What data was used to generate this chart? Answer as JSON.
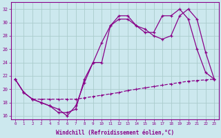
{
  "background_color": "#cce8ee",
  "grid_color": "#aacccc",
  "line_color": "#880088",
  "title": "Windchill (Refroidissement éolien,°C)",
  "xlim": [
    -0.5,
    23.5
  ],
  "ylim": [
    15.5,
    33.0
  ],
  "yticks": [
    16,
    18,
    20,
    22,
    24,
    26,
    28,
    30,
    32
  ],
  "xticks": [
    0,
    1,
    2,
    3,
    4,
    5,
    6,
    7,
    8,
    9,
    10,
    11,
    12,
    13,
    14,
    15,
    16,
    17,
    18,
    19,
    20,
    21,
    22,
    23
  ],
  "line1_x": [
    0,
    1,
    2,
    3,
    4,
    5,
    6,
    7,
    8,
    9,
    10,
    11,
    12,
    13,
    14,
    15,
    16,
    17,
    18,
    19,
    20,
    21,
    22,
    23
  ],
  "line1_y": [
    21.5,
    19.5,
    18.5,
    18.0,
    17.5,
    17.0,
    16.0,
    17.5,
    21.0,
    24.0,
    27.0,
    29.5,
    31.0,
    31.0,
    29.5,
    29.0,
    28.0,
    27.5,
    28.0,
    31.0,
    32.0,
    30.5,
    25.5,
    21.5
  ],
  "line2_x": [
    0,
    1,
    2,
    3,
    4,
    5,
    6,
    7,
    8,
    9,
    10,
    11,
    12,
    13,
    14,
    15,
    16,
    17,
    18,
    19,
    20,
    21,
    22,
    23
  ],
  "line2_y": [
    21.5,
    19.5,
    18.5,
    18.0,
    17.5,
    16.5,
    16.5,
    17.0,
    21.5,
    24.0,
    24.0,
    29.5,
    30.5,
    30.5,
    29.5,
    28.5,
    28.5,
    31.0,
    31.0,
    32.0,
    30.5,
    26.0,
    22.5,
    21.5
  ],
  "line3_x": [
    0,
    1,
    2,
    3,
    4,
    5,
    6,
    7,
    8,
    9,
    10,
    11,
    12,
    13,
    14,
    15,
    16,
    17,
    18,
    19,
    20,
    21,
    22,
    23
  ],
  "line3_y": [
    21.5,
    19.5,
    18.5,
    18.5,
    18.5,
    18.5,
    18.5,
    18.5,
    18.7,
    18.9,
    19.1,
    19.3,
    19.5,
    19.8,
    20.0,
    20.2,
    20.4,
    20.6,
    20.8,
    21.0,
    21.2,
    21.3,
    21.4,
    21.5
  ]
}
